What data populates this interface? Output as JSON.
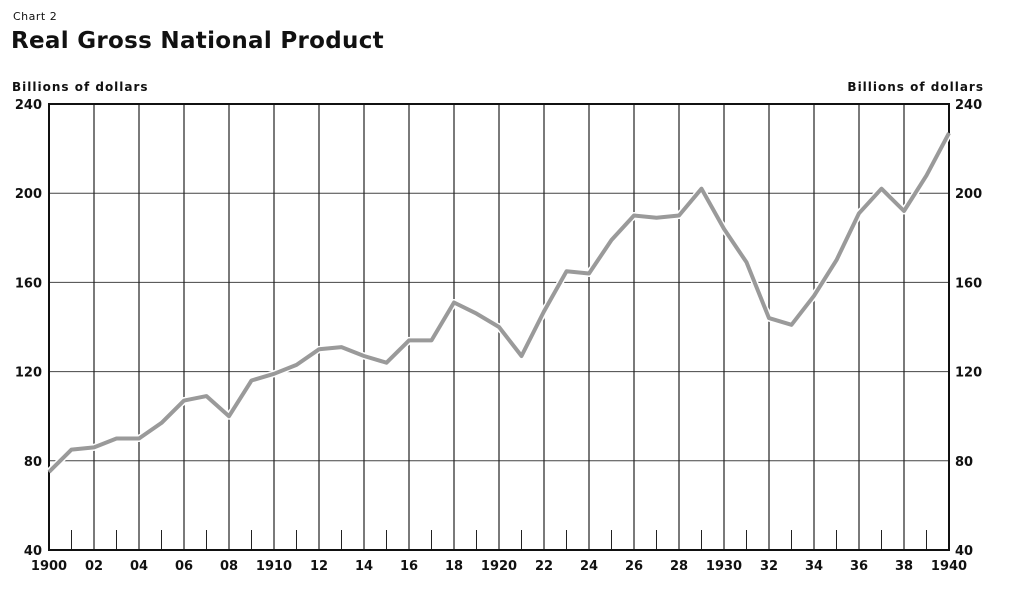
{
  "chart_label": "Chart 2",
  "title": "Real Gross National Product",
  "unit_left": "Billions of dollars",
  "unit_right": "Billions of dollars",
  "chart_data": {
    "type": "line",
    "title": "Real Gross National Product",
    "ylabel": "Billions of dollars",
    "xlim": [
      1900,
      1940
    ],
    "ylim": [
      40,
      240
    ],
    "y_ticks": [
      40,
      80,
      120,
      160,
      200,
      240
    ],
    "x_tick_years": [
      1900,
      1902,
      1904,
      1906,
      1908,
      1910,
      1912,
      1914,
      1916,
      1918,
      1920,
      1922,
      1924,
      1926,
      1928,
      1930,
      1932,
      1934,
      1936,
      1938,
      1940
    ],
    "x_tick_labels": [
      "1900",
      "02",
      "04",
      "06",
      "08",
      "1910",
      "12",
      "14",
      "16",
      "18",
      "1920",
      "22",
      "24",
      "26",
      "28",
      "1930",
      "32",
      "34",
      "36",
      "38",
      "1940"
    ],
    "grid": true,
    "line_color": "#9a9a9a",
    "series": [
      {
        "x": [
          1900,
          1901,
          1902,
          1903,
          1904,
          1905,
          1906,
          1907,
          1908,
          1909,
          1910,
          1911,
          1912,
          1913,
          1914,
          1915,
          1916,
          1917,
          1918,
          1919,
          1920,
          1921,
          1922,
          1923,
          1924,
          1925,
          1926,
          1927,
          1928,
          1929,
          1930,
          1931,
          1932,
          1933,
          1934,
          1935,
          1936,
          1937,
          1938,
          1939,
          1940
        ],
        "values": [
          75,
          85,
          86,
          90,
          90,
          97,
          107,
          109,
          100,
          116,
          119,
          123,
          130,
          131,
          127,
          124,
          134,
          134,
          151,
          146,
          140,
          127,
          147,
          165,
          164,
          179,
          190,
          189,
          190,
          202,
          184,
          169,
          144,
          141,
          154,
          170,
          191,
          202,
          192,
          208,
          227
        ]
      }
    ]
  }
}
